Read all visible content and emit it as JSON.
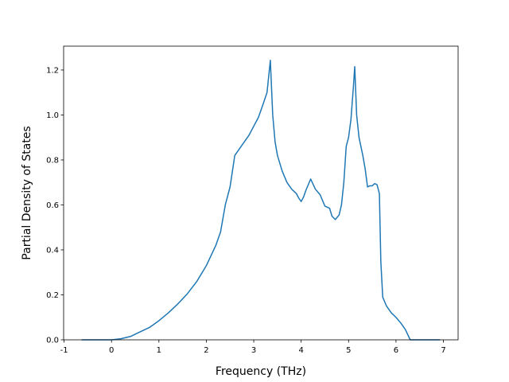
{
  "chart_data": {
    "type": "line",
    "x_label": "Frequency (THz)",
    "y_label": "Partial Density of States",
    "x": [
      -0.63,
      0,
      0.2,
      0.4,
      0.5,
      0.6,
      0.8,
      1.0,
      1.2,
      1.4,
      1.6,
      1.8,
      2.0,
      2.2,
      2.3,
      2.4,
      2.5,
      2.55,
      2.6,
      2.7,
      2.8,
      2.9,
      3.0,
      3.1,
      3.2,
      3.28,
      3.35,
      3.4,
      3.45,
      3.5,
      3.6,
      3.7,
      3.8,
      3.9,
      3.95,
      4.0,
      4.05,
      4.1,
      4.2,
      4.3,
      4.4,
      4.5,
      4.6,
      4.65,
      4.72,
      4.8,
      4.85,
      4.9,
      4.95,
      5.0,
      5.05,
      5.1,
      5.13,
      5.17,
      5.22,
      5.3,
      5.35,
      5.4,
      5.45,
      5.5,
      5.55,
      5.6,
      5.65,
      5.68,
      5.72,
      5.8,
      5.9,
      6.0,
      6.1,
      6.2,
      6.3,
      6.93
    ],
    "series": [
      {
        "name": "PDOS",
        "color": "#1f77b4",
        "values": [
          0,
          0,
          0.005,
          0.015,
          0.025,
          0.035,
          0.055,
          0.085,
          0.12,
          0.16,
          0.205,
          0.26,
          0.33,
          0.42,
          0.48,
          0.6,
          0.68,
          0.75,
          0.82,
          0.85,
          0.88,
          0.91,
          0.95,
          0.99,
          1.05,
          1.1,
          1.243,
          1.0,
          0.88,
          0.82,
          0.75,
          0.7,
          0.67,
          0.65,
          0.63,
          0.615,
          0.635,
          0.665,
          0.715,
          0.67,
          0.645,
          0.595,
          0.585,
          0.55,
          0.535,
          0.555,
          0.6,
          0.7,
          0.86,
          0.9,
          0.98,
          1.12,
          1.215,
          1.0,
          0.9,
          0.82,
          0.76,
          0.68,
          0.685,
          0.685,
          0.695,
          0.69,
          0.65,
          0.35,
          0.19,
          0.15,
          0.12,
          0.1,
          0.075,
          0.045,
          0,
          0
        ]
      }
    ],
    "xlim": [
      -1.01,
      7.31
    ],
    "ylim": [
      0,
      1.306
    ],
    "xticks": [
      -1,
      0,
      1,
      2,
      3,
      4,
      5,
      6,
      7
    ],
    "yticks": [
      {
        "value": 0,
        "label": "0.0"
      },
      {
        "value": 0.2,
        "label": "0.2"
      },
      {
        "value": 0.4,
        "label": "0.4"
      },
      {
        "value": 0.6,
        "label": "0.6"
      },
      {
        "value": 0.8,
        "label": "0.8"
      },
      {
        "value": 1.0,
        "label": "1.0"
      },
      {
        "value": 1.2,
        "label": "1.2"
      }
    ]
  }
}
